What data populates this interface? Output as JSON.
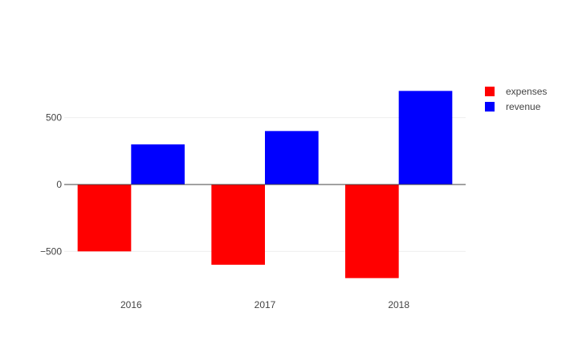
{
  "chart_data": {
    "type": "bar",
    "categories": [
      "2016",
      "2017",
      "2018"
    ],
    "series": [
      {
        "name": "expenses",
        "values": [
          -500,
          -600,
          -700
        ],
        "color": "#ff0000"
      },
      {
        "name": "revenue",
        "values": [
          300,
          400,
          700
        ],
        "color": "#0000ff"
      }
    ],
    "title": "",
    "xlabel": "",
    "ylabel": "",
    "ylim": [
      -780,
      780
    ],
    "yticks": [
      -500,
      0,
      500
    ],
    "ytick_labels": [
      "−500",
      "0",
      "500"
    ],
    "grid": true,
    "legend": "top-right",
    "barmode": "group"
  }
}
